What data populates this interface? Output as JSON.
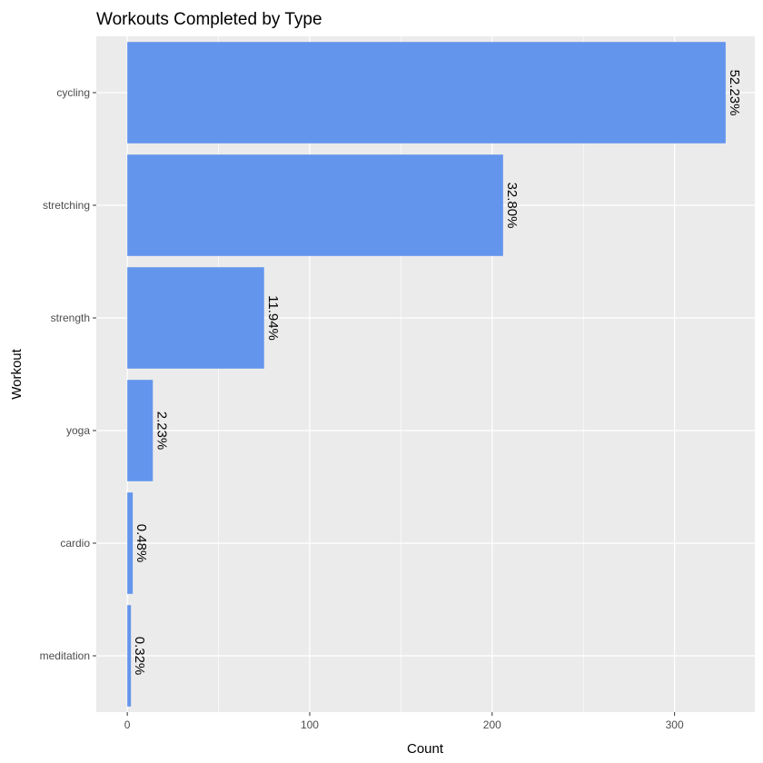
{
  "chart_data": {
    "type": "bar",
    "orientation": "horizontal",
    "title": "Workouts Completed by Type",
    "xlabel": "Count",
    "ylabel": "Workout",
    "categories": [
      "cycling",
      "stretching",
      "strength",
      "yoga",
      "cardio",
      "meditation"
    ],
    "values": [
      328,
      206,
      75,
      14,
      3,
      2
    ],
    "labels": [
      "52.23%",
      "32.80%",
      "11.94%",
      "2.23%",
      "0.48%",
      "0.32%"
    ],
    "xlim": [
      -17,
      344
    ],
    "xticks": [
      0,
      100,
      200,
      300
    ],
    "grid": true,
    "colors": {
      "bar": "#6495ED",
      "panel": "#EBEBEB",
      "grid": "#FFFFFF"
    }
  }
}
